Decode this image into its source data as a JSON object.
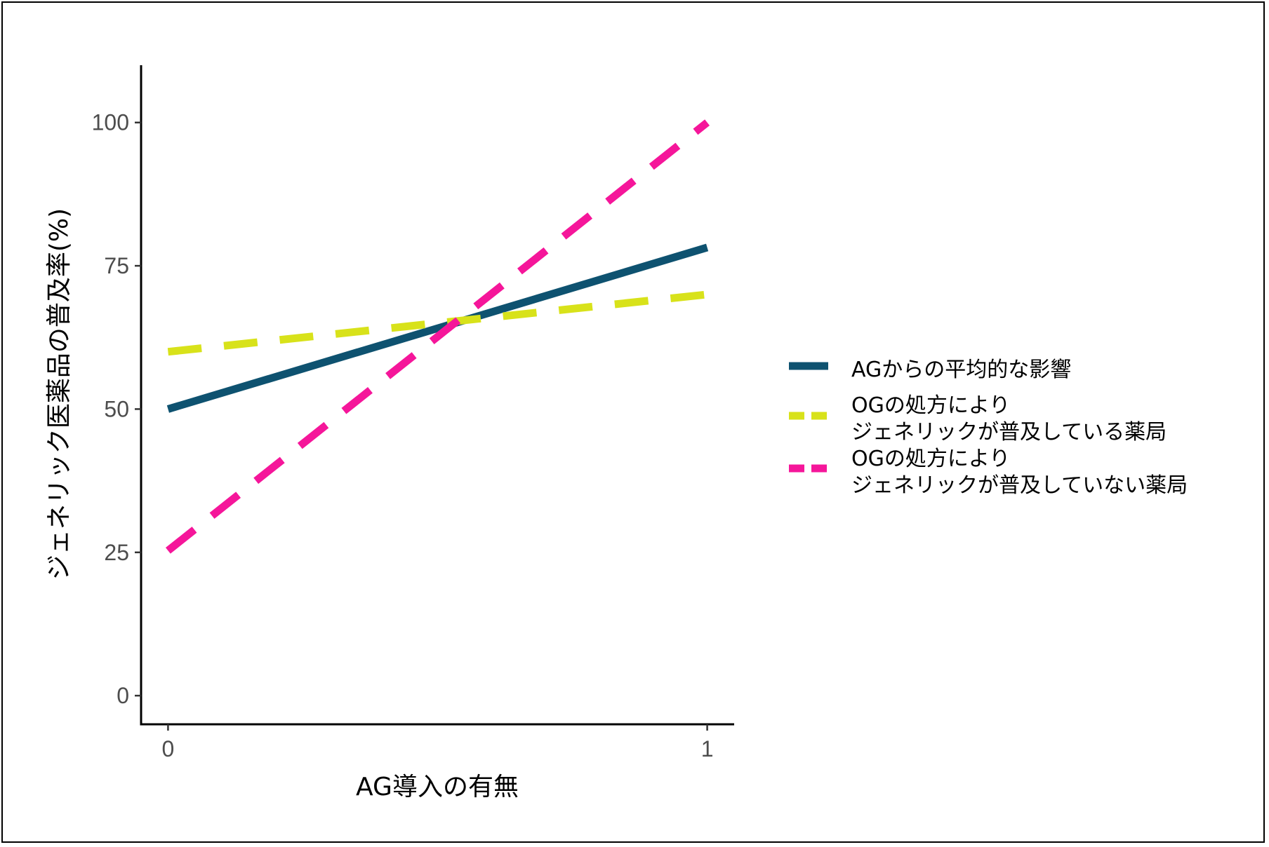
{
  "chart_data": {
    "type": "line",
    "xlabel": "AG導入の有無",
    "ylabel": "ジェネリック医薬品の普及率(%)",
    "x": [
      0,
      1
    ],
    "xlim": [
      -0.05,
      1.05
    ],
    "ylim": [
      -5,
      110
    ],
    "x_ticks": [
      "0",
      "1"
    ],
    "y_ticks": [
      "0",
      "25",
      "50",
      "75",
      "100"
    ],
    "grid": false,
    "legend_position": "right",
    "series": [
      {
        "name_lines": [
          "AGからの平均的な影響"
        ],
        "values": [
          50,
          78.2
        ],
        "color": "#0e5270",
        "style": "solid"
      },
      {
        "name_lines": [
          "OGの処方により",
          " ジェネリックが普及している薬局"
        ],
        "values": [
          60,
          70
        ],
        "color": "#d8e21a",
        "style": "dashed"
      },
      {
        "name_lines": [
          "OGの処方により",
          "ジェネリックが普及していない薬局"
        ],
        "values": [
          25.3,
          100
        ],
        "color": "#f5169a",
        "style": "dashed"
      }
    ]
  }
}
